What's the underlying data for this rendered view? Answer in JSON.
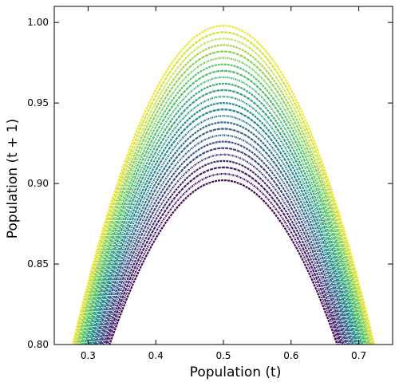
{
  "chart_data": {
    "type": "scatter",
    "title": "",
    "xlabel": "Population (t)",
    "ylabel": "Population (t + 1)",
    "xlim": [
      0.25,
      0.75
    ],
    "ylim": [
      0.8,
      1.01
    ],
    "xticks": [
      "0.3",
      "0.4",
      "0.5",
      "0.6",
      "0.7"
    ],
    "yticks": [
      "0.80",
      "0.85",
      "0.90",
      "0.95",
      "1.00"
    ],
    "grid": false,
    "legend": "none",
    "colormap": "viridis",
    "colormap_stops": [
      "#440154",
      "#3b528b",
      "#21918c",
      "#5ec962",
      "#fde725"
    ],
    "series_rule": "y = r * x * (1 - x)",
    "r_min": 3.6,
    "r_max": 4.0,
    "peak_values": [
      0.902,
      0.906,
      0.91,
      0.914,
      0.918,
      0.922,
      0.926,
      0.93,
      0.934,
      0.938,
      0.942,
      0.946,
      0.95,
      0.954,
      0.958,
      0.962,
      0.966,
      0.97,
      0.974,
      0.978,
      0.982,
      0.986,
      0.99,
      0.994,
      0.998
    ]
  }
}
